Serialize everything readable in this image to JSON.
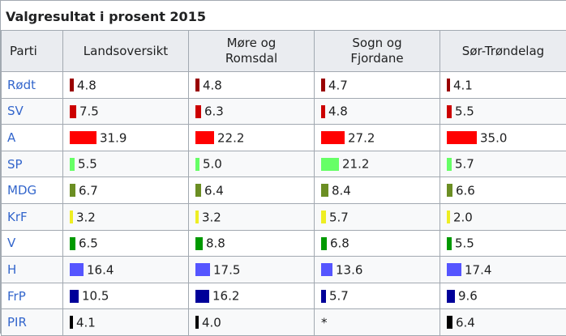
{
  "title": "Valgresultat i prosent 2015",
  "headers": [
    "Parti",
    "Landsoversikt",
    "Møre og\nRomsdal",
    "Sogn og\nFjordane",
    "Sør-Trøndelag"
  ],
  "rows": [
    {
      "party": "Rødt",
      "color": "#990000",
      "values": [
        "4.8",
        "4.8",
        "4.7",
        "4.1"
      ]
    },
    {
      "party": "SV",
      "color": "#cc0000",
      "values": [
        "7.5",
        "6.3",
        "4.8",
        "5.5"
      ]
    },
    {
      "party": "A",
      "color": "#ff0000",
      "values": [
        "31.9",
        "22.2",
        "27.2",
        "35.0"
      ]
    },
    {
      "party": "SP",
      "color": "#66ff66",
      "values": [
        "5.5",
        "5.0",
        "21.2",
        "5.7"
      ]
    },
    {
      "party": "MDG",
      "color": "#6b8e23",
      "values": [
        "6.7",
        "6.4",
        "8.4",
        "6.6"
      ]
    },
    {
      "party": "KrF",
      "color": "#eeee22",
      "values": [
        "3.2",
        "3.2",
        "5.7",
        "2.0"
      ]
    },
    {
      "party": "V",
      "color": "#009900",
      "values": [
        "6.5",
        "8.8",
        "6.8",
        "5.5"
      ]
    },
    {
      "party": "H",
      "color": "#5555ff",
      "values": [
        "16.4",
        "17.5",
        "13.6",
        "17.4"
      ]
    },
    {
      "party": "FrP",
      "color": "#000099",
      "values": [
        "10.5",
        "16.2",
        "5.7",
        "9.6"
      ]
    },
    {
      "party": "PIR",
      "color": "#000000",
      "values": [
        "4.1",
        "4.0",
        "*",
        "6.4"
      ]
    }
  ]
}
